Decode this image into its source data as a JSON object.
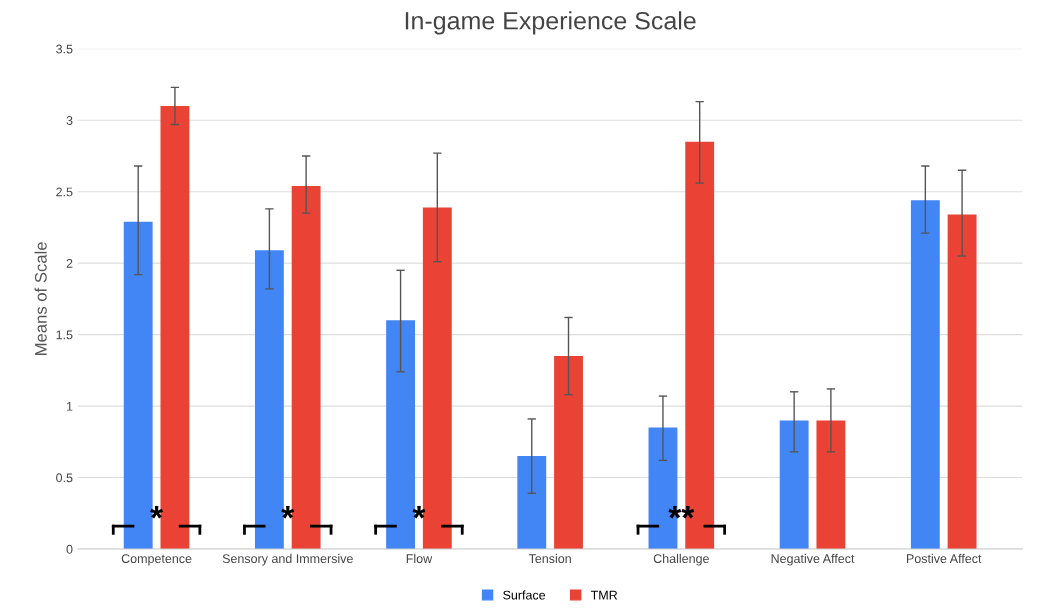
{
  "chart_data": {
    "type": "bar",
    "title": "In-game Experience Scale",
    "ylabel": "Means of Scale",
    "categories": [
      "Competence",
      "Sensory and Immersive",
      "Flow",
      "Tension",
      "Challenge",
      "Negative Affect",
      "Postive Affect"
    ],
    "series": [
      {
        "name": "Surface",
        "color": "#4285f4",
        "values": [
          2.29,
          2.09,
          1.6,
          0.65,
          0.85,
          0.9,
          2.44
        ],
        "errors": [
          [
            1.92,
            2.68
          ],
          [
            1.82,
            2.38
          ],
          [
            1.24,
            1.95
          ],
          [
            0.39,
            0.91
          ],
          [
            0.62,
            1.07
          ],
          [
            0.68,
            1.1
          ],
          [
            2.21,
            2.68
          ]
        ]
      },
      {
        "name": "TMR",
        "color": "#ea4335",
        "values": [
          3.1,
          2.54,
          2.39,
          1.35,
          2.85,
          0.9,
          2.34
        ],
        "errors": [
          [
            2.97,
            3.23
          ],
          [
            2.35,
            2.75
          ],
          [
            2.01,
            2.77
          ],
          [
            1.08,
            1.62
          ],
          [
            2.56,
            3.13
          ],
          [
            0.68,
            1.12
          ],
          [
            2.05,
            2.65
          ]
        ]
      }
    ],
    "ylim": [
      0,
      3.5
    ],
    "yticks": [
      0,
      0.5,
      1,
      1.5,
      2,
      2.5,
      3,
      3.5
    ],
    "grid": "y",
    "legend": "bottom",
    "annotations": [
      {
        "text": "*",
        "x": "Competence",
        "y": 0.2
      },
      {
        "text": "*",
        "x": "Sensory and Immersive",
        "y": 0.2
      },
      {
        "text": "*",
        "x": "Flow",
        "y": 0.2
      },
      {
        "text": "**",
        "x": "Challenge",
        "y": 0.2
      }
    ]
  }
}
